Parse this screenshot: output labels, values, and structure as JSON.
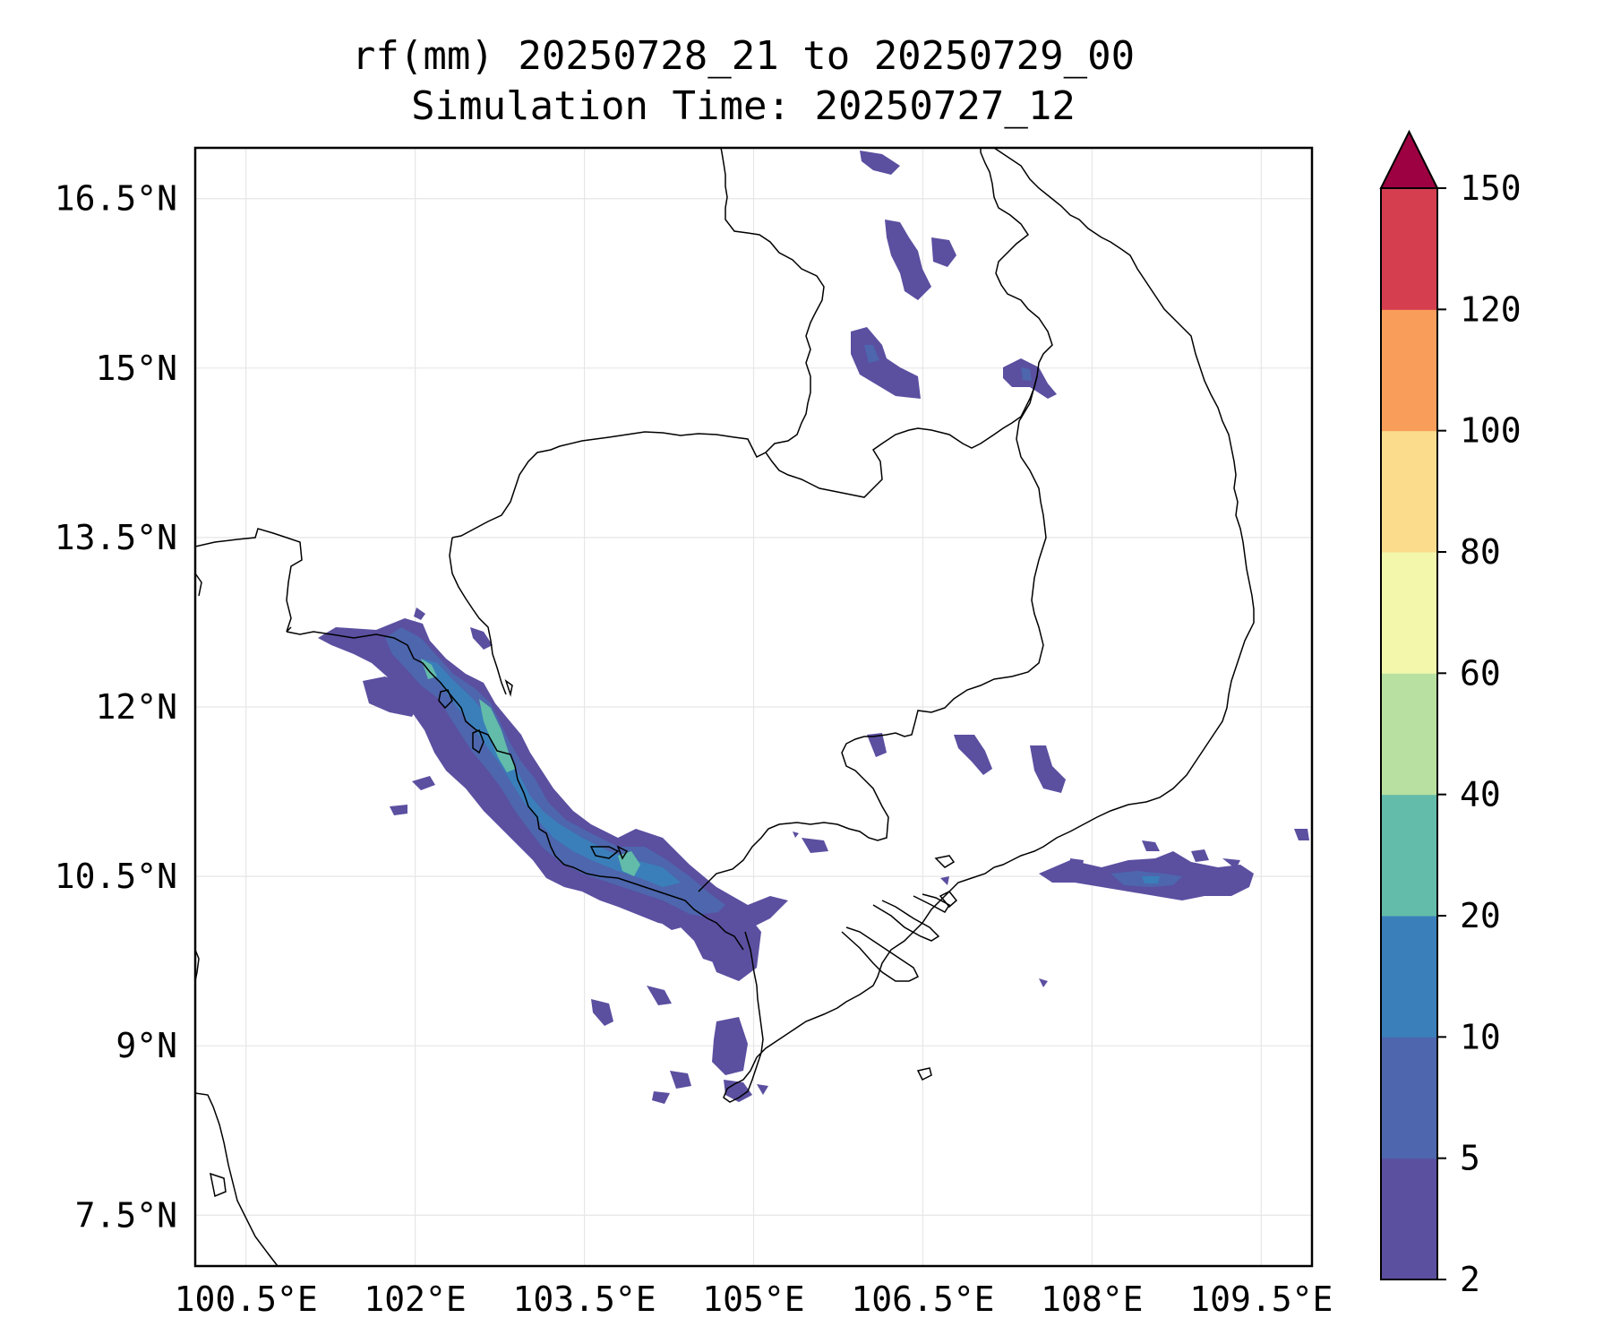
{
  "title": {
    "line1": "rf(mm) 20250728_21 to 20250729_00",
    "line2": "Simulation Time: 20250727_12"
  },
  "map": {
    "lon_ticks": [
      "100.5°E",
      "102°E",
      "103.5°E",
      "105°E",
      "106.5°E",
      "108°E",
      "109.5°E"
    ],
    "lat_ticks": [
      "16.5°N",
      "15°N",
      "13.5°N",
      "12°N",
      "10.5°N",
      "9°N",
      "7.5°N"
    ],
    "lon_values": [
      100.5,
      102,
      103.5,
      105,
      106.5,
      108,
      109.5
    ],
    "lat_values": [
      16.5,
      15,
      13.5,
      12,
      10.5,
      9,
      7.5
    ],
    "lon_range": [
      100.05,
      109.95
    ],
    "lat_range": [
      7.05,
      16.95
    ],
    "grid": true,
    "coastline_color": "#000000"
  },
  "colorbar": {
    "levels": [
      "2",
      "5",
      "10",
      "20",
      "40",
      "60",
      "80",
      "100",
      "120",
      "150"
    ],
    "colors": [
      "#5b4fa0",
      "#4d66ad",
      "#3a7fba",
      "#63bca9",
      "#b8e0a0",
      "#f2f7ab",
      "#fbdc8c",
      "#f89d5a",
      "#d53e4f",
      "#9e0142"
    ],
    "extend": "max"
  }
}
